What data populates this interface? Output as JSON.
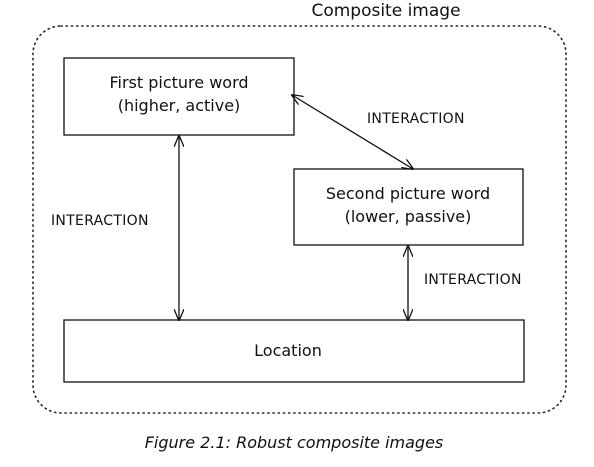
{
  "container": {
    "title": "Composite image"
  },
  "nodes": {
    "first": {
      "line1": "First picture word",
      "line2": "(higher, active)"
    },
    "second": {
      "line1": "Second picture word",
      "line2": "(lower, passive)"
    },
    "location": {
      "label": "Location"
    }
  },
  "edges": {
    "first_second": "INTERACTION",
    "first_location": "INTERACTION",
    "second_location": "INTERACTION"
  },
  "caption": "Figure 2.1: Robust composite images"
}
